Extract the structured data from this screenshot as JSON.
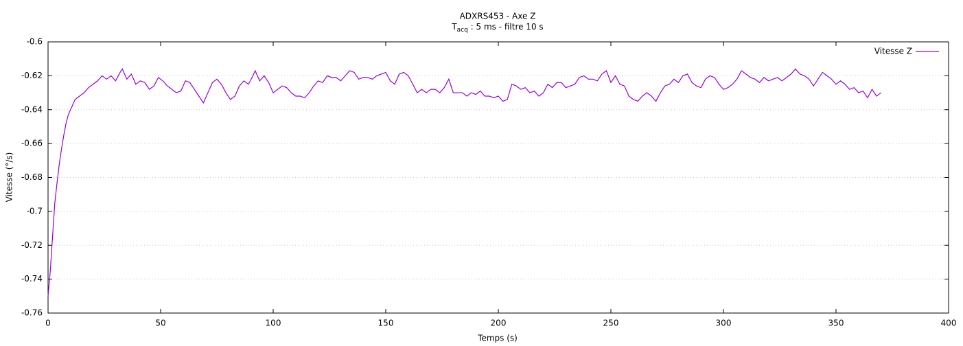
{
  "chart_data": {
    "type": "line",
    "title": "ADXRS453 - Axe Z",
    "subtitle": {
      "main": "T",
      "subscript": "acq",
      "rest": " : 5 ms - filtre 10 s"
    },
    "xlabel": "Temps (s)",
    "ylabel": "Vitesse (°/s)",
    "xlim": [
      0,
      400
    ],
    "xticks": [
      0,
      50,
      100,
      150,
      200,
      250,
      300,
      350,
      400
    ],
    "ylim": [
      -0.76,
      -0.6
    ],
    "yticks": [
      -0.6,
      -0.62,
      -0.64,
      -0.66,
      -0.68,
      -0.7,
      -0.72,
      -0.74,
      -0.76
    ],
    "grid": true,
    "legend": "top-right",
    "x": [
      0,
      1,
      2,
      3,
      4,
      5,
      6,
      7,
      8,
      9,
      10,
      12,
      14,
      16,
      18,
      20,
      22,
      24,
      26,
      28,
      30,
      32,
      33,
      35,
      37,
      39,
      41,
      43,
      45,
      47,
      49,
      51,
      53,
      55,
      57,
      59,
      61,
      63,
      65,
      67,
      69,
      71,
      73,
      75,
      77,
      79,
      81,
      83,
      85,
      87,
      89,
      91,
      92,
      94,
      96,
      98,
      100,
      102,
      104,
      106,
      108,
      110,
      112,
      114,
      116,
      118,
      120,
      122,
      124,
      126,
      128,
      130,
      132,
      134,
      136,
      138,
      140,
      142,
      144,
      146,
      148,
      150,
      152,
      154,
      156,
      158,
      160,
      162,
      164,
      166,
      168,
      170,
      172,
      174,
      176,
      178,
      180,
      182,
      184,
      186,
      188,
      190,
      192,
      194,
      196,
      198,
      200,
      202,
      204,
      206,
      208,
      210,
      212,
      214,
      216,
      218,
      220,
      222,
      224,
      226,
      228,
      230,
      232,
      234,
      236,
      238,
      240,
      242,
      244,
      246,
      248,
      250,
      252,
      254,
      256,
      258,
      260,
      262,
      264,
      266,
      268,
      270,
      272,
      274,
      276,
      278,
      280,
      282,
      284,
      286,
      288,
      290,
      292,
      294,
      296,
      298,
      300,
      302,
      304,
      306,
      308,
      310,
      312,
      314,
      316,
      318,
      320,
      322,
      324,
      326,
      328,
      330,
      332,
      334,
      336,
      338,
      340,
      342,
      344,
      346,
      348,
      350,
      352,
      354,
      356,
      358,
      360,
      362,
      364,
      366,
      368,
      370
    ],
    "series": [
      {
        "name": "Vitesse Z",
        "color": "#9400d3",
        "values": [
          -0.75,
          -0.735,
          -0.715,
          -0.695,
          -0.683,
          -0.672,
          -0.663,
          -0.655,
          -0.648,
          -0.643,
          -0.64,
          -0.634,
          -0.632,
          -0.63,
          -0.627,
          -0.625,
          -0.623,
          -0.62,
          -0.622,
          -0.62,
          -0.623,
          -0.618,
          -0.616,
          -0.622,
          -0.619,
          -0.625,
          -0.623,
          -0.624,
          -0.628,
          -0.626,
          -0.621,
          -0.623,
          -0.626,
          -0.628,
          -0.63,
          -0.629,
          -0.623,
          -0.624,
          -0.628,
          -0.632,
          -0.636,
          -0.63,
          -0.624,
          -0.622,
          -0.625,
          -0.63,
          -0.634,
          -0.632,
          -0.626,
          -0.623,
          -0.625,
          -0.62,
          -0.617,
          -0.623,
          -0.62,
          -0.624,
          -0.63,
          -0.628,
          -0.626,
          -0.627,
          -0.63,
          -0.632,
          -0.632,
          -0.633,
          -0.63,
          -0.626,
          -0.623,
          -0.624,
          -0.62,
          -0.621,
          -0.621,
          -0.623,
          -0.62,
          -0.617,
          -0.618,
          -0.622,
          -0.621,
          -0.621,
          -0.622,
          -0.62,
          -0.619,
          -0.618,
          -0.623,
          -0.625,
          -0.619,
          -0.618,
          -0.62,
          -0.625,
          -0.63,
          -0.628,
          -0.63,
          -0.628,
          -0.628,
          -0.63,
          -0.627,
          -0.622,
          -0.63,
          -0.63,
          -0.63,
          -0.632,
          -0.63,
          -0.631,
          -0.629,
          -0.632,
          -0.632,
          -0.633,
          -0.632,
          -0.635,
          -0.634,
          -0.625,
          -0.626,
          -0.628,
          -0.627,
          -0.63,
          -0.629,
          -0.632,
          -0.63,
          -0.625,
          -0.627,
          -0.624,
          -0.624,
          -0.627,
          -0.626,
          -0.625,
          -0.621,
          -0.62,
          -0.622,
          -0.622,
          -0.623,
          -0.619,
          -0.617,
          -0.624,
          -0.62,
          -0.625,
          -0.626,
          -0.632,
          -0.634,
          -0.635,
          -0.632,
          -0.63,
          -0.632,
          -0.635,
          -0.63,
          -0.626,
          -0.625,
          -0.622,
          -0.624,
          -0.62,
          -0.619,
          -0.624,
          -0.626,
          -0.627,
          -0.622,
          -0.62,
          -0.621,
          -0.625,
          -0.628,
          -0.627,
          -0.625,
          -0.622,
          -0.617,
          -0.619,
          -0.621,
          -0.622,
          -0.624,
          -0.621,
          -0.623,
          -0.622,
          -0.621,
          -0.623,
          -0.621,
          -0.619,
          -0.616,
          -0.619,
          -0.62,
          -0.622,
          -0.626,
          -0.622,
          -0.618,
          -0.62,
          -0.622,
          -0.625,
          -0.623,
          -0.625,
          -0.628,
          -0.627,
          -0.63,
          -0.629,
          -0.633,
          -0.628,
          -0.632,
          -0.63
        ]
      }
    ]
  }
}
